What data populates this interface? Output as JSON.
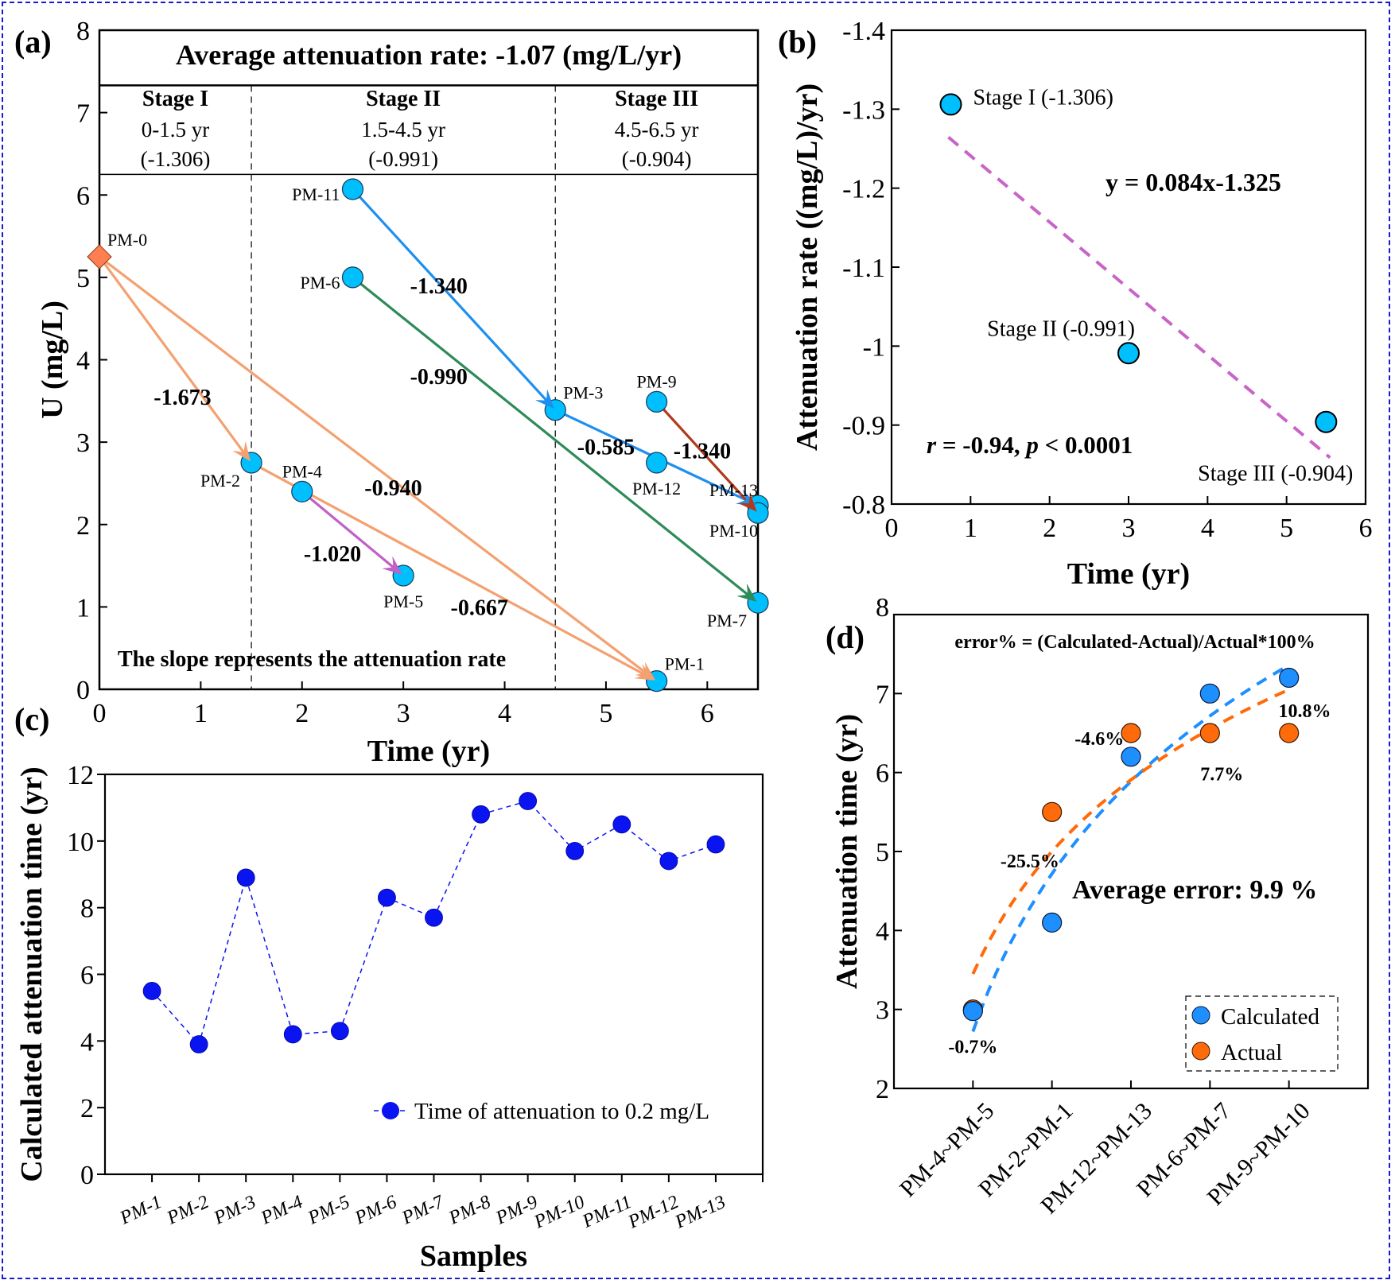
{
  "figure": {
    "panel_labels": [
      "(a)",
      "(b)",
      "(c)",
      "(d)"
    ]
  },
  "chart_data": [
    {
      "id": "a",
      "type": "scatter",
      "title": "Average attenuation rate: -1.07 (mg/L/yr)",
      "xlabel": "Time (yr)",
      "ylabel": "U (mg/L)",
      "xlim": [
        0,
        6.5
      ],
      "ylim": [
        0,
        8
      ],
      "xticks": [
        0,
        1,
        2,
        3,
        4,
        5,
        6
      ],
      "yticks": [
        0,
        1,
        2,
        3,
        4,
        5,
        6,
        7,
        8
      ],
      "stage_boundaries": [
        1.5,
        4.5
      ],
      "stages": [
        {
          "name": "Stage I",
          "range": "0-1.5 yr",
          "rate": "(-1.306)",
          "center": 0.75
        },
        {
          "name": "Stage II",
          "range": "1.5-4.5 yr",
          "rate": "(-0.991)",
          "center": 3.0
        },
        {
          "name": "Stage III",
          "range": "4.5-6.5 yr",
          "rate": "(-0.904)",
          "center": 5.5
        }
      ],
      "note": "The slope represents the attenuation rate",
      "points": [
        {
          "label": "PM-0",
          "x": 0,
          "y": 5.25,
          "marker": "diamond",
          "label_pos": "ne"
        },
        {
          "label": "PM-2",
          "x": 1.5,
          "y": 2.75,
          "marker": "circle",
          "label_pos": "sw"
        },
        {
          "label": "PM-4",
          "x": 2.0,
          "y": 2.4,
          "marker": "circle",
          "label_pos": "n"
        },
        {
          "label": "PM-5",
          "x": 3.0,
          "y": 1.38,
          "marker": "circle",
          "label_pos": "s"
        },
        {
          "label": "PM-1",
          "x": 5.5,
          "y": 0.1,
          "marker": "circle",
          "label_pos": "ne"
        },
        {
          "label": "PM-11",
          "x": 2.5,
          "y": 6.07,
          "marker": "circle",
          "label_pos": "w"
        },
        {
          "label": "PM-6",
          "x": 2.5,
          "y": 5.0,
          "marker": "circle",
          "label_pos": "w"
        },
        {
          "label": "PM-3",
          "x": 4.5,
          "y": 3.39,
          "marker": "circle",
          "label_pos": "ne"
        },
        {
          "label": "PM-9",
          "x": 5.5,
          "y": 3.49,
          "marker": "circle",
          "label_pos": "n"
        },
        {
          "label": "PM-12",
          "x": 5.5,
          "y": 2.75,
          "marker": "circle",
          "label_pos": "s"
        },
        {
          "label": "PM-13",
          "x": 6.5,
          "y": 2.23,
          "marker": "circle",
          "label_pos": "nw"
        },
        {
          "label": "PM-10",
          "x": 6.5,
          "y": 2.14,
          "marker": "circle",
          "label_pos": "sw"
        },
        {
          "label": "PM-7",
          "x": 6.5,
          "y": 1.05,
          "marker": "circle",
          "label_pos": "sw"
        }
      ],
      "arrows": [
        {
          "from": "PM-0",
          "to": "PM-2",
          "slope": "-1.673",
          "color": "#f4a070",
          "label_x": 0.82,
          "label_y": 3.55
        },
        {
          "from": "PM-0",
          "to": "PM-1",
          "slope": "-0.940",
          "color": "#f4a070",
          "label_x": 2.9,
          "label_y": 2.45
        },
        {
          "from": "PM-2",
          "to": "PM-1",
          "slope": "-0.667",
          "color": "#f4a070",
          "label_x": 3.75,
          "label_y": 1.0
        },
        {
          "from": "PM-4",
          "to": "PM-5",
          "slope": "-1.020",
          "color": "#c060c8",
          "label_x": 2.3,
          "label_y": 1.65
        },
        {
          "from": "PM-11",
          "to": "PM-3",
          "slope": "-1.340",
          "color": "#1e8ff0",
          "label_x": 3.35,
          "label_y": 4.9
        },
        {
          "from": "PM-6",
          "to": "PM-7",
          "slope": "-0.990",
          "color": "#2e8b57",
          "label_x": 3.35,
          "label_y": 3.8
        },
        {
          "from": "PM-3",
          "to": "PM-13",
          "slope": "-0.585",
          "color": "#1e8ff0",
          "label_x": 5.0,
          "label_y": 2.95
        },
        {
          "from": "PM-9",
          "to": "PM-10",
          "slope": "-1.340",
          "color": "#b03a1a",
          "label_x": 5.95,
          "label_y": 2.9
        }
      ],
      "colors": {
        "marker_fill": "#00bfff",
        "diamond_fill": "#ff7f50"
      }
    },
    {
      "id": "b",
      "type": "scatter",
      "xlabel": "Time (yr)",
      "ylabel": "Attenuation rate ((mg/L)/yr)",
      "xlim": [
        0,
        6
      ],
      "ylim": [
        -0.8,
        -1.4
      ],
      "y_inverted": true,
      "xticks": [
        0,
        1,
        2,
        3,
        4,
        5,
        6
      ],
      "yticks": [
        -1.4,
        -1.3,
        -1.2,
        -1.1,
        -1,
        -0.9,
        -0.8
      ],
      "ytick_labels": [
        "-1.4",
        "-1.3",
        "-1.2",
        "-1.1",
        "-1",
        "-0.9",
        "-0.8"
      ],
      "points": [
        {
          "label": "Stage I (-1.306)",
          "x": 0.75,
          "y": -1.306
        },
        {
          "label": "Stage II (-0.991)",
          "x": 3.0,
          "y": -0.991
        },
        {
          "label": "Stage III (-0.904)",
          "x": 5.5,
          "y": -0.904
        }
      ],
      "fit": {
        "slope": 0.084,
        "intercept": -1.325,
        "x_range": [
          0.72,
          5.55
        ],
        "color": "#c864c8"
      },
      "equation": "y = 0.084x-1.325",
      "stats_r": "r",
      "stats_mid": " = -0.94, ",
      "stats_p": "p",
      "stats_end": " < 0.0001",
      "colors": {
        "marker_fill": "#00bfff"
      }
    },
    {
      "id": "c",
      "type": "line",
      "xlabel": "Samples",
      "ylabel": "Calculated attenuation time (yr)",
      "ylim": [
        0,
        12
      ],
      "yticks": [
        0,
        2,
        4,
        6,
        8,
        10,
        12
      ],
      "categories": [
        "PM-1",
        "PM-2",
        "PM-3",
        "PM-4",
        "PM-5",
        "PM-6",
        "PM-7",
        "PM-8",
        "PM-9",
        "PM-10",
        "PM-11",
        "PM-12",
        "PM-13"
      ],
      "series": [
        {
          "name": "Time of attenuation to 0.2 mg/L",
          "values": [
            5.5,
            3.9,
            8.9,
            4.2,
            4.3,
            8.3,
            7.7,
            10.8,
            11.2,
            9.7,
            10.5,
            9.4,
            9.9
          ],
          "color": "#0a14f0"
        }
      ],
      "legend": "bottom-right"
    },
    {
      "id": "d",
      "type": "scatter",
      "xlabel": "",
      "ylabel": "Attenuation time (yr)",
      "ylim": [
        2,
        8
      ],
      "yticks": [
        2,
        3,
        4,
        5,
        6,
        7,
        8
      ],
      "categories": [
        "PM-4~PM-5",
        "PM-2~PM-1",
        "PM-12~PM-13",
        "PM-6~PM-7",
        "PM-9~PM-10"
      ],
      "series": [
        {
          "name": "Calculated",
          "values": [
            2.98,
            4.1,
            6.2,
            7.0,
            7.2
          ],
          "color": "#1e8fff"
        },
        {
          "name": "Actual",
          "values": [
            3.0,
            5.5,
            6.5,
            6.5,
            6.5
          ],
          "color": "#ff6a0a"
        }
      ],
      "error_labels": [
        {
          "text": "-0.7%",
          "cat": 0,
          "y": 2.55
        },
        {
          "text": "-25.5%",
          "cat": 0.72,
          "y": 4.9
        },
        {
          "text": "-4.6%",
          "cat": 1.6,
          "y": 6.45
        },
        {
          "text": "7.7%",
          "cat": 3.15,
          "y": 6.0
        },
        {
          "text": "10.8%",
          "cat": 4.2,
          "y": 6.8
        }
      ],
      "formula": "error% = (Calculated-Actual)/Actual*100%",
      "average": "Average error: 9.9 %",
      "trend_calc": {
        "a": 2.72,
        "b": 4.64,
        "color": "#1e8fff"
      },
      "trend_actual": {
        "a": 3.45,
        "b": 3.6,
        "color": "#ff6a0a"
      },
      "legend": "bottom-right"
    }
  ]
}
